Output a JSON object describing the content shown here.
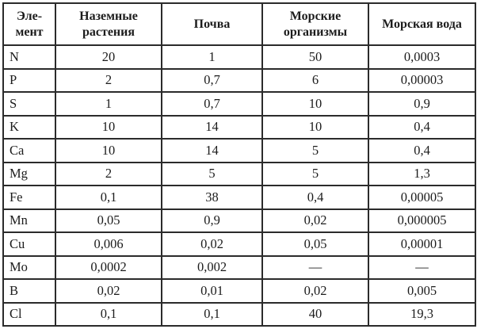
{
  "colors": {
    "background": "#ffffff",
    "border": "#2b2b2b",
    "text": "#1c1c1c"
  },
  "table": {
    "columns": [
      {
        "label": "Эле-\nмент"
      },
      {
        "label": "Наземные\nрастения"
      },
      {
        "label": "Почва"
      },
      {
        "label": "Морские\nорганизмы"
      },
      {
        "label": "Морская вода"
      }
    ],
    "rows": [
      {
        "element": "N",
        "values": [
          "20",
          "1",
          "50",
          "0,0003"
        ]
      },
      {
        "element": "P",
        "values": [
          "2",
          "0,7",
          "6",
          "0,00003"
        ]
      },
      {
        "element": "S",
        "values": [
          "1",
          "0,7",
          "10",
          "0,9"
        ]
      },
      {
        "element": "K",
        "values": [
          "10",
          "14",
          "10",
          "0,4"
        ]
      },
      {
        "element": "Ca",
        "values": [
          "10",
          "14",
          "5",
          "0,4"
        ]
      },
      {
        "element": "Mg",
        "values": [
          "2",
          "5",
          "5",
          "1,3"
        ]
      },
      {
        "element": "Fe",
        "values": [
          "0,1",
          "38",
          "0,4",
          "0,00005"
        ]
      },
      {
        "element": "Mn",
        "values": [
          "0,05",
          "0,9",
          "0,02",
          "0,000005"
        ]
      },
      {
        "element": "Cu",
        "values": [
          "0,006",
          "0,02",
          "0,05",
          "0,00001"
        ]
      },
      {
        "element": "Mo",
        "values": [
          "0,0002",
          "0,002",
          "—",
          "—"
        ]
      },
      {
        "element": "B",
        "values": [
          "0,02",
          "0,01",
          "0,02",
          "0,005"
        ]
      },
      {
        "element": "Cl",
        "values": [
          "0,1",
          "0,1",
          "40",
          "19,3"
        ]
      }
    ]
  }
}
